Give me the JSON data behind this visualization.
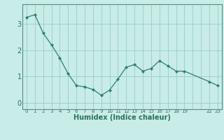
{
  "x_values": [
    0,
    1,
    2,
    3,
    4,
    5,
    6,
    7,
    8,
    9,
    10,
    11,
    12,
    13,
    14,
    15,
    16,
    17,
    18,
    19,
    22,
    23
  ],
  "y_values": [
    3.25,
    3.35,
    2.65,
    2.2,
    1.7,
    1.1,
    0.65,
    0.6,
    0.5,
    0.28,
    0.48,
    0.9,
    1.35,
    1.45,
    1.2,
    1.3,
    1.6,
    1.4,
    1.2,
    1.2,
    0.8,
    0.65
  ],
  "xlabel": "Humidex (Indice chaleur)",
  "ylim": [
    -0.25,
    3.75
  ],
  "yticks": [
    0,
    1,
    2,
    3
  ],
  "xlim": [
    -0.5,
    23.5
  ],
  "line_color": "#2e8070",
  "marker_color": "#2e8070",
  "bg_color": "#c8ece8",
  "grid_color": "#a0d0cc",
  "axis_color": "#5a8a80",
  "tick_label_color": "#2e7060",
  "xlabel_color": "#2e7060",
  "ytick_fontsize": 7,
  "xtick_fontsize": 5,
  "xlabel_fontsize": 7
}
